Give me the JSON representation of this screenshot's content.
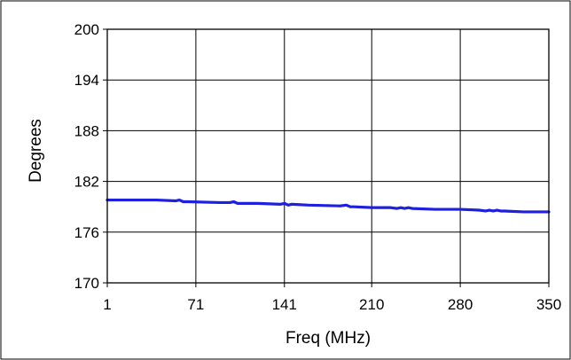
{
  "chart_data": {
    "type": "line",
    "title": "",
    "xlabel": "Freq (MHz)",
    "ylabel": "Degrees",
    "xlim": [
      1,
      350
    ],
    "ylim": [
      170,
      200
    ],
    "x_ticks": [
      1,
      71,
      141,
      210,
      280,
      350
    ],
    "y_ticks": [
      170,
      176,
      182,
      188,
      194,
      200
    ],
    "grid": true,
    "legend": "none",
    "series": [
      {
        "color": "#1f1fe0",
        "x": [
          1,
          20,
          40,
          55,
          58,
          61,
          65,
          90,
          98,
          101,
          104,
          120,
          138,
          141,
          144,
          147,
          160,
          185,
          190,
          193,
          196,
          210,
          225,
          230,
          233,
          236,
          239,
          242,
          260,
          280,
          295,
          300,
          303,
          306,
          309,
          312,
          315,
          330,
          350
        ],
        "y": [
          179.8,
          179.8,
          179.8,
          179.7,
          179.8,
          179.6,
          179.6,
          179.5,
          179.5,
          179.6,
          179.4,
          179.4,
          179.3,
          179.4,
          179.2,
          179.3,
          179.2,
          179.1,
          179.2,
          179.0,
          179.0,
          178.9,
          178.9,
          178.8,
          178.9,
          178.8,
          178.9,
          178.8,
          178.7,
          178.7,
          178.6,
          178.5,
          178.6,
          178.5,
          178.6,
          178.5,
          178.5,
          178.4,
          178.4
        ]
      }
    ]
  }
}
